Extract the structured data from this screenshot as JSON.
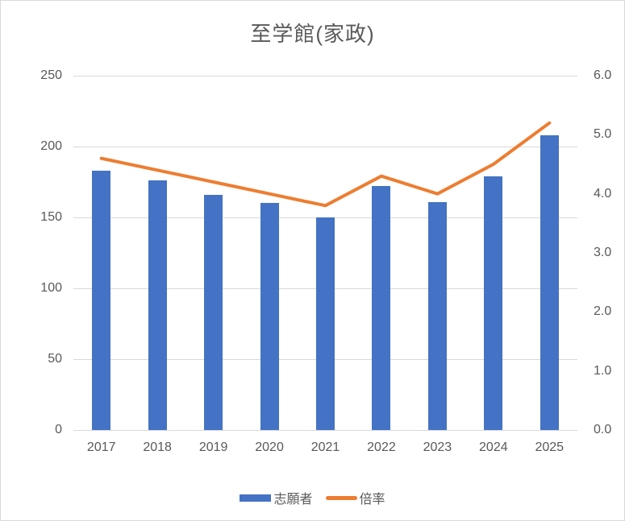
{
  "chart_data": {
    "type": "bar",
    "subtype": "combo-bar-line-dual-axis",
    "title": "至学館(家政)",
    "categories": [
      "2017",
      "2018",
      "2019",
      "2020",
      "2021",
      "2022",
      "2023",
      "2024",
      "2025"
    ],
    "series": [
      {
        "name": "志願者",
        "type": "bar",
        "axis": "left",
        "color": "#4472C4",
        "values": [
          183,
          176,
          166,
          160,
          150,
          172,
          161,
          179,
          208
        ]
      },
      {
        "name": "倍率",
        "type": "line",
        "axis": "right",
        "color": "#ED7D31",
        "values": [
          4.6,
          4.4,
          4.2,
          4.0,
          3.8,
          4.3,
          4.0,
          4.5,
          5.2
        ]
      }
    ],
    "left_axis": {
      "min": 0,
      "max": 250,
      "tick_step": 50,
      "ticks": [
        "250",
        "200",
        "150",
        "100",
        "50",
        "0"
      ]
    },
    "right_axis": {
      "min": 0.0,
      "max": 6.0,
      "tick_step": 1.0,
      "ticks": [
        "6.0",
        "5.0",
        "4.0",
        "3.0",
        "2.0",
        "1.0",
        "0.0"
      ]
    },
    "grid": true,
    "legend_position": "bottom",
    "colors": {
      "bar": "#4472C4",
      "line": "#ED7D31",
      "axis_text": "#595959",
      "title_text": "#595959",
      "gridline": "#D9D9D9",
      "border": "#D9D9D9",
      "background": "#FFFFFF"
    }
  }
}
